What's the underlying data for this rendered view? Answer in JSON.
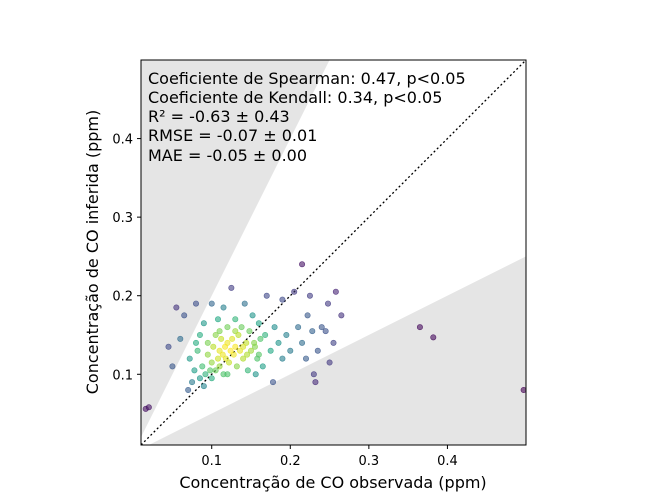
{
  "chart_data": {
    "type": "scatter",
    "title": "",
    "xlabel": "Concentração de CO observada (ppm)",
    "ylabel": "Concentração de CO inferida (ppm)",
    "xlim": [
      0.01,
      0.5
    ],
    "ylim": [
      0.01,
      0.5
    ],
    "xticks": [
      0.1,
      0.2,
      0.3,
      0.4
    ],
    "yticks": [
      0.1,
      0.2,
      0.3,
      0.4
    ],
    "xtick_labels": [
      "0.1",
      "0.2",
      "0.3",
      "0.4"
    ],
    "ytick_labels": [
      "0.1",
      "0.2",
      "0.3",
      "0.4"
    ],
    "grid": false,
    "reference_line": "y = x (dotted)",
    "shaded_regions": "grey bands outside the range y = 0.5x to y = 2x",
    "annotations": [
      "Coeficiente de Spearman: 0.47, p<0.05",
      "Coeficiente de Kendall: 0.34, p<0.05",
      "R² = -0.63 ± 0.43",
      "RMSE = -0.07 ± 0.01",
      "MAE = -0.05 ± 0.00"
    ],
    "colormap": "viridis (point density)",
    "points": [
      [
        0.016,
        0.056
      ],
      [
        0.02,
        0.058
      ],
      [
        0.055,
        0.185
      ],
      [
        0.045,
        0.135
      ],
      [
        0.05,
        0.11
      ],
      [
        0.06,
        0.145
      ],
      [
        0.065,
        0.175
      ],
      [
        0.07,
        0.08
      ],
      [
        0.072,
        0.12
      ],
      [
        0.075,
        0.09
      ],
      [
        0.078,
        0.105
      ],
      [
        0.08,
        0.19
      ],
      [
        0.082,
        0.13
      ],
      [
        0.085,
        0.095
      ],
      [
        0.085,
        0.15
      ],
      [
        0.088,
        0.11
      ],
      [
        0.09,
        0.165
      ],
      [
        0.092,
        0.1
      ],
      [
        0.095,
        0.125
      ],
      [
        0.095,
        0.14
      ],
      [
        0.098,
        0.105
      ],
      [
        0.1,
        0.19
      ],
      [
        0.1,
        0.115
      ],
      [
        0.102,
        0.135
      ],
      [
        0.105,
        0.105
      ],
      [
        0.105,
        0.15
      ],
      [
        0.108,
        0.12
      ],
      [
        0.108,
        0.17
      ],
      [
        0.11,
        0.11
      ],
      [
        0.11,
        0.13
      ],
      [
        0.112,
        0.145
      ],
      [
        0.114,
        0.125
      ],
      [
        0.115,
        0.185
      ],
      [
        0.115,
        0.1
      ],
      [
        0.117,
        0.135
      ],
      [
        0.118,
        0.12
      ],
      [
        0.12,
        0.14
      ],
      [
        0.12,
        0.16
      ],
      [
        0.122,
        0.115
      ],
      [
        0.124,
        0.13
      ],
      [
        0.125,
        0.21
      ],
      [
        0.126,
        0.145
      ],
      [
        0.128,
        0.125
      ],
      [
        0.13,
        0.135
      ],
      [
        0.13,
        0.17
      ],
      [
        0.132,
        0.11
      ],
      [
        0.134,
        0.15
      ],
      [
        0.136,
        0.13
      ],
      [
        0.138,
        0.16
      ],
      [
        0.14,
        0.12
      ],
      [
        0.142,
        0.19
      ],
      [
        0.144,
        0.14
      ],
      [
        0.146,
        0.105
      ],
      [
        0.148,
        0.155
      ],
      [
        0.15,
        0.13
      ],
      [
        0.152,
        0.175
      ],
      [
        0.154,
        0.14
      ],
      [
        0.156,
        0.1
      ],
      [
        0.158,
        0.12
      ],
      [
        0.16,
        0.165
      ],
      [
        0.162,
        0.145
      ],
      [
        0.165,
        0.11
      ],
      [
        0.168,
        0.15
      ],
      [
        0.17,
        0.2
      ],
      [
        0.175,
        0.13
      ],
      [
        0.178,
        0.09
      ],
      [
        0.18,
        0.16
      ],
      [
        0.185,
        0.14
      ],
      [
        0.19,
        0.12
      ],
      [
        0.19,
        0.195
      ],
      [
        0.195,
        0.15
      ],
      [
        0.2,
        0.13
      ],
      [
        0.205,
        0.205
      ],
      [
        0.21,
        0.16
      ],
      [
        0.215,
        0.24
      ],
      [
        0.215,
        0.14
      ],
      [
        0.22,
        0.12
      ],
      [
        0.222,
        0.175
      ],
      [
        0.225,
        0.2
      ],
      [
        0.228,
        0.155
      ],
      [
        0.23,
        0.1
      ],
      [
        0.232,
        0.09
      ],
      [
        0.235,
        0.13
      ],
      [
        0.24,
        0.16
      ],
      [
        0.245,
        0.155
      ],
      [
        0.248,
        0.19
      ],
      [
        0.25,
        0.115
      ],
      [
        0.255,
        0.14
      ],
      [
        0.258,
        0.205
      ],
      [
        0.265,
        0.175
      ],
      [
        0.365,
        0.16
      ],
      [
        0.382,
        0.147
      ],
      [
        0.497,
        0.08
      ],
      [
        0.09,
        0.085
      ],
      [
        0.1,
        0.095
      ],
      [
        0.12,
        0.1
      ],
      [
        0.08,
        0.14
      ],
      [
        0.13,
        0.155
      ],
      [
        0.14,
        0.135
      ],
      [
        0.145,
        0.125
      ],
      [
        0.155,
        0.135
      ],
      [
        0.16,
        0.125
      ],
      [
        0.11,
        0.155
      ]
    ]
  }
}
